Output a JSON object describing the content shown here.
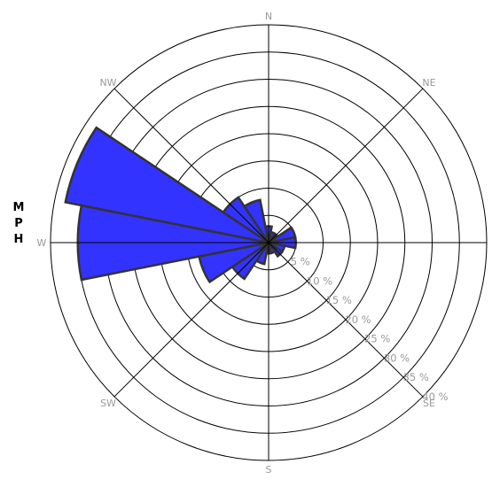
{
  "chart_data": {
    "type": "polar-bar",
    "title": "",
    "ylabel": "MPH",
    "directions": [
      "N",
      "NNE",
      "NE",
      "ENE",
      "E",
      "ESE",
      "SE",
      "SSE",
      "S",
      "SSW",
      "SW",
      "WSW",
      "W",
      "WNW",
      "NW",
      "NNW"
    ],
    "direction_labels": [
      "N",
      "NE",
      "E",
      "SE",
      "S",
      "SW",
      "W",
      "NW"
    ],
    "ring_labels": [
      "5 %",
      "10 %",
      "15 %",
      "20 %",
      "25 %",
      "30 %",
      "35 %",
      "40 %"
    ],
    "r_max": 40,
    "r_step": 5,
    "values": [
      3,
      2,
      2,
      5,
      5,
      3,
      3,
      2,
      2,
      4,
      8,
      13,
      35,
      38,
      10,
      8
    ],
    "colors": {
      "petal": "#3333ff",
      "outline": "#333333"
    }
  }
}
